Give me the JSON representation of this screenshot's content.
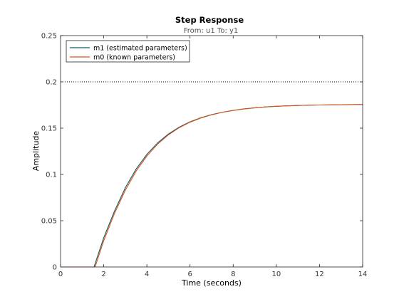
{
  "chart_data": {
    "type": "line",
    "title": "Step Response",
    "subtitle": "From: u1  To: y1",
    "xlabel": "Time (seconds)",
    "ylabel": "Amplitude",
    "xlim": [
      0,
      14
    ],
    "ylim": [
      0,
      0.25
    ],
    "xticks": [
      0,
      2,
      4,
      6,
      8,
      10,
      12,
      14
    ],
    "xtick_labels": [
      "0",
      "2",
      "4",
      "6",
      "8",
      "10",
      "12",
      "14"
    ],
    "yticks": [
      0,
      0.05,
      0.1,
      0.15,
      0.2,
      0.25
    ],
    "ytick_labels": [
      "0",
      "0.05",
      "0.1",
      "0.15",
      "0.2",
      "0.25"
    ],
    "grid": false,
    "legend_position": "top-left",
    "reference_line": {
      "y": 0.2,
      "style": "dotted",
      "color": "#000000"
    },
    "series": [
      {
        "name": "m1 (estimated parameters)",
        "color": "#0b5a66",
        "x": [
          0,
          1.55,
          1.55,
          2,
          2.5,
          3,
          3.5,
          4,
          4.5,
          5,
          5.5,
          6,
          6.5,
          7,
          7.5,
          8,
          8.5,
          9,
          9.5,
          10,
          10.5,
          11,
          11.5,
          12,
          12.5,
          13,
          13.5,
          14
        ],
        "y": [
          0,
          0,
          0,
          0.0315,
          0.0604,
          0.0855,
          0.1057,
          0.1217,
          0.1341,
          0.1437,
          0.1511,
          0.1568,
          0.1612,
          0.1646,
          0.1672,
          0.1692,
          0.1708,
          0.172,
          0.1729,
          0.1736,
          0.1741,
          0.1745,
          0.1748,
          0.175,
          0.1752,
          0.1753,
          0.1754,
          0.1755
        ]
      },
      {
        "name": "m0 (known parameters)",
        "color": "#d95319",
        "x": [
          0,
          1.6,
          1.6,
          2,
          2.5,
          3,
          3.5,
          4,
          4.5,
          5,
          5.5,
          6,
          6.5,
          7,
          7.5,
          8,
          8.5,
          9,
          9.5,
          10,
          10.5,
          11,
          11.5,
          12,
          12.5,
          13,
          13.5,
          14
        ],
        "y": [
          0,
          0,
          0,
          0.0283,
          0.0579,
          0.0828,
          0.1035,
          0.1199,
          0.1328,
          0.1428,
          0.1505,
          0.1564,
          0.1609,
          0.1644,
          0.1671,
          0.1691,
          0.1707,
          0.1719,
          0.1729,
          0.1736,
          0.1741,
          0.1745,
          0.1748,
          0.175,
          0.1752,
          0.1753,
          0.1754,
          0.1755
        ]
      }
    ]
  }
}
